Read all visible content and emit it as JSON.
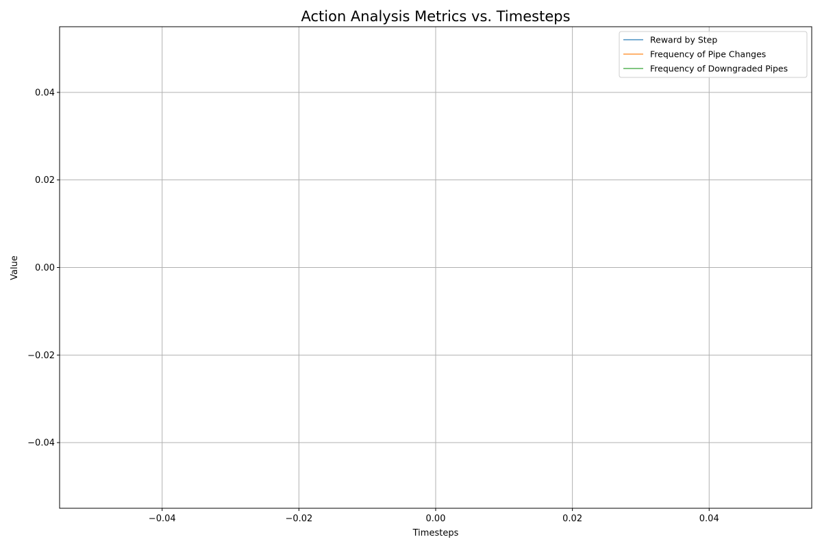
{
  "chart_data": {
    "type": "line",
    "title": "Action Analysis Metrics vs. Timesteps",
    "xlabel": "Timesteps",
    "ylabel": "Value",
    "xlim": [
      -0.055,
      0.055
    ],
    "ylim": [
      -0.055,
      0.055
    ],
    "x_ticks": [
      -0.04,
      -0.02,
      0.0,
      0.02,
      0.04
    ],
    "x_tick_labels": [
      "−0.04",
      "−0.02",
      "0.00",
      "0.02",
      "0.04"
    ],
    "y_ticks": [
      0.04,
      0.02,
      0.0,
      -0.02,
      -0.04
    ],
    "y_tick_labels": [
      "0.04",
      "0.02",
      "0.00",
      "−0.02",
      "−0.04"
    ],
    "grid": true,
    "legend_position": "top-right",
    "series": [
      {
        "name": "Reward by Step",
        "color": "#1f77b4",
        "x": [],
        "y": []
      },
      {
        "name": "Frequency of Pipe Changes",
        "color": "#ff7f0e",
        "x": [],
        "y": []
      },
      {
        "name": "Frequency of Downgraded Pipes",
        "color": "#2ca02c",
        "x": [],
        "y": []
      }
    ]
  }
}
